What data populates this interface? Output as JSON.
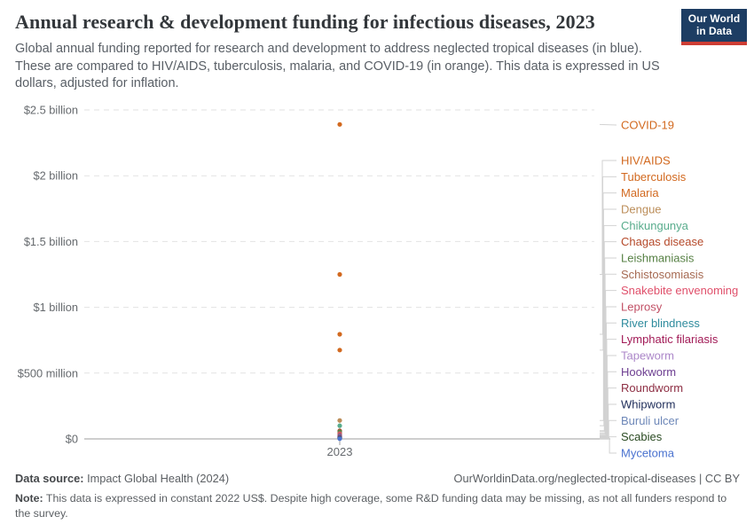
{
  "header": {
    "title": "Annual research & development funding for infectious diseases, 2023",
    "subtitle": "Global annual funding reported for research and development to address neglected tropical diseases (in blue). These are compared to HIV/AIDS, tuberculosis, malaria, and COVID-19 (in orange). This data is expressed in US dollars, adjusted for inflation.",
    "logo": {
      "line1": "Our World",
      "line2": "in Data",
      "bg_color": "#1d3d63",
      "stripe_color": "#cd3d34"
    }
  },
  "chart_data": {
    "type": "scatter",
    "title": "Annual research & development funding for infectious diseases, 2023",
    "xlabel": "",
    "ylabel": "",
    "x_categories": [
      "2023"
    ],
    "unit": "US$ millions (constant 2022 US$)",
    "ylim": [
      0,
      2500
    ],
    "yticks": [
      {
        "value": 0,
        "label": "$0"
      },
      {
        "value": 500,
        "label": "$500 million"
      },
      {
        "value": 1000,
        "label": "$1 billion"
      },
      {
        "value": 1500,
        "label": "$1.5 billion"
      },
      {
        "value": 2000,
        "label": "$2 billion"
      },
      {
        "value": 2500,
        "label": "$2.5 billion"
      }
    ],
    "grid": "horizontal-dashed",
    "legend_position": "right-entity-labels",
    "series": [
      {
        "name": "COVID-19",
        "value_musd": 2390,
        "color": "#D2691F",
        "group": "comparator"
      },
      {
        "name": "HIV/AIDS",
        "value_musd": 1250,
        "color": "#D2691F",
        "group": "comparator"
      },
      {
        "name": "Tuberculosis",
        "value_musd": 795,
        "color": "#D2691F",
        "group": "comparator"
      },
      {
        "name": "Malaria",
        "value_musd": 675,
        "color": "#D2691F",
        "group": "comparator"
      },
      {
        "name": "Dengue",
        "value_musd": 140,
        "color": "#BC8E5A",
        "group": "ntd"
      },
      {
        "name": "Chikungunya",
        "value_musd": 100,
        "color": "#58AC8C",
        "group": "ntd"
      },
      {
        "name": "Chagas disease",
        "value_musd": 62,
        "color": "#B5492A",
        "group": "ntd"
      },
      {
        "name": "Leishmaniasis",
        "value_musd": 55,
        "color": "#578145",
        "group": "ntd"
      },
      {
        "name": "Schistosomiasis",
        "value_musd": 42,
        "color": "#A66A52",
        "group": "ntd"
      },
      {
        "name": "Snakebite envenoming",
        "value_musd": 35,
        "color": "#E0506B",
        "group": "ntd"
      },
      {
        "name": "Leprosy",
        "value_musd": 27,
        "color": "#C15065",
        "group": "ntd"
      },
      {
        "name": "River blindness",
        "value_musd": 22,
        "color": "#2E8B9D",
        "group": "ntd"
      },
      {
        "name": "Lymphatic filariasis",
        "value_musd": 18,
        "color": "#A21B57",
        "group": "ntd"
      },
      {
        "name": "Tapeworm",
        "value_musd": 15,
        "color": "#AC87C9",
        "group": "ntd"
      },
      {
        "name": "Hookworm",
        "value_musd": 12,
        "color": "#6D3E91",
        "group": "ntd"
      },
      {
        "name": "Roundworm",
        "value_musd": 10,
        "color": "#8E2F44",
        "group": "ntd"
      },
      {
        "name": "Whipworm",
        "value_musd": 8,
        "color": "#1F2E5A",
        "group": "ntd"
      },
      {
        "name": "Buruli ulcer",
        "value_musd": 6,
        "color": "#6D87B8",
        "group": "ntd"
      },
      {
        "name": "Scabies",
        "value_musd": 4,
        "color": "#2A4A22",
        "group": "ntd"
      },
      {
        "name": "Mycetoma",
        "value_musd": 2,
        "color": "#4A72CF",
        "group": "ntd"
      }
    ]
  },
  "footer": {
    "source_label": "Data source:",
    "source_text": " Impact Global Health (2024)",
    "url_text": "OurWorldinData.org/neglected-tropical-diseases | CC BY",
    "note_label": "Note:",
    "note_text": " This data is expressed in constant 2022 US$. Despite high coverage, some R&D funding data may be missing, as not all funders respond to the survey."
  }
}
